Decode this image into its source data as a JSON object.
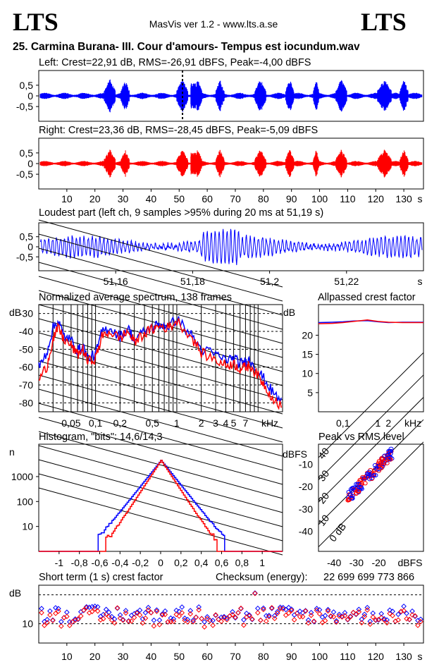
{
  "header": {
    "logo_left": "LTS",
    "logo_right": "LTS",
    "app": "MasVis ver 1.2 - www.lts.a.se",
    "file": "25. Carmina Burana- III. Cour d'amours- Tempus est iocundum.wav"
  },
  "colors": {
    "left": "#0000ff",
    "right": "#ff0000",
    "dashed": "#000000"
  },
  "chart_data": [
    {
      "type": "line",
      "title": "Left: Crest=22,91 dB, RMS=-26,91 dBFS, Peak=-4,00 dBFS",
      "ylim": [
        -1,
        1
      ],
      "yticks": [
        "0,5",
        "0",
        "-0,5"
      ],
      "marker_s": 51.19,
      "duration_s": 137,
      "envelope_loud_segments_s": [
        [
          23,
          27
        ],
        [
          29,
          32
        ],
        [
          49,
          53
        ],
        [
          55,
          58
        ],
        [
          63,
          66
        ],
        [
          77,
          81
        ],
        [
          88,
          91
        ],
        [
          98,
          100
        ],
        [
          106,
          110
        ],
        [
          121,
          126
        ],
        [
          129,
          132
        ]
      ],
      "color": "#0000ff"
    },
    {
      "type": "line",
      "title": "Right: Crest=23,36 dB, RMS=-28,45 dBFS, Peak=-5,09 dBFS",
      "ylim": [
        -1,
        1
      ],
      "yticks": [
        "0,5",
        "0",
        "-0,5"
      ],
      "xlabel": "s",
      "xticks": [
        "10",
        "20",
        "30",
        "40",
        "50",
        "60",
        "70",
        "80",
        "90",
        "100",
        "110",
        "120",
        "130"
      ],
      "color": "#ff0000"
    },
    {
      "type": "line",
      "title": "Loudest part (left  ch, 9 samples >95% during 20 ms at 51,19 s)",
      "ylim": [
        -1,
        1
      ],
      "yticks": [
        "0,5",
        "0",
        "-0,5"
      ],
      "xticks": [
        "51,16",
        "51,18",
        "51,2",
        "51,22"
      ],
      "xlabel": "s",
      "xlim": [
        51.14,
        51.24
      ],
      "color": "#0000ff"
    },
    {
      "type": "line",
      "title": "Normalized average spectrum, 138 frames",
      "ylabel": "dB",
      "yticks": [
        "-30",
        "-40",
        "-50",
        "-60",
        "-70",
        "-80"
      ],
      "xticks": [
        "0,05",
        "0,1",
        "0,2",
        "0,5",
        "1",
        "2",
        "3",
        "4",
        "5",
        "7"
      ],
      "xlabel": "kHz",
      "series": [
        {
          "color": "#0000ff",
          "f_khz": [
            0.02,
            0.025,
            0.03,
            0.035,
            0.04,
            0.05,
            0.06,
            0.07,
            0.08,
            0.1,
            0.12,
            0.15,
            0.2,
            0.25,
            0.3,
            0.4,
            0.5,
            0.6,
            0.8,
            1,
            1.5,
            2,
            3,
            4,
            5,
            6,
            7,
            8,
            10,
            12,
            15,
            20
          ],
          "db": [
            -60,
            -52,
            -38,
            -34,
            -42,
            -45,
            -51,
            -48,
            -55,
            -53,
            -40,
            -38,
            -43,
            -38,
            -45,
            -40,
            -38,
            -36,
            -37,
            -33,
            -42,
            -50,
            -53,
            -56,
            -55,
            -58,
            -57,
            -56,
            -62,
            -67,
            -74,
            -80
          ]
        },
        {
          "color": "#ff0000",
          "f_khz": [
            0.02,
            0.025,
            0.03,
            0.035,
            0.04,
            0.05,
            0.06,
            0.07,
            0.08,
            0.1,
            0.12,
            0.15,
            0.2,
            0.25,
            0.3,
            0.4,
            0.5,
            0.6,
            0.8,
            1,
            1.5,
            2,
            3,
            4,
            5,
            6,
            7,
            8,
            10,
            12,
            15,
            20
          ],
          "db": [
            -67,
            -60,
            -44,
            -38,
            -44,
            -48,
            -53,
            -50,
            -57,
            -55,
            -43,
            -40,
            -44,
            -40,
            -46,
            -41,
            -39,
            -37,
            -38,
            -34,
            -43,
            -52,
            -56,
            -59,
            -58,
            -61,
            -60,
            -59,
            -65,
            -70,
            -77,
            -83
          ]
        }
      ]
    },
    {
      "type": "line",
      "title": "Allpassed crest factor",
      "ylabel": "dB",
      "yticks": [
        "20",
        "15",
        "10",
        "5"
      ],
      "ylim": [
        0,
        28
      ],
      "xticks": [
        "0,1",
        "1",
        "2"
      ],
      "xlabel": "kHz",
      "series": [
        {
          "color": "#0000ff",
          "f_khz": [
            0.02,
            0.05,
            0.1,
            0.2,
            0.5,
            1,
            2,
            5,
            20
          ],
          "db": [
            23.3,
            23.4,
            23.5,
            23.7,
            23.8,
            23.5,
            23.3,
            23.4,
            23.4
          ]
        },
        {
          "color": "#ff0000",
          "f_khz": [
            0.02,
            0.05,
            0.1,
            0.2,
            0.5,
            1,
            2,
            5,
            20
          ],
          "db": [
            23.0,
            23.1,
            23.3,
            23.6,
            24.0,
            23.6,
            23.4,
            23.3,
            23.3
          ]
        }
      ]
    },
    {
      "type": "line",
      "title": "Histogram, \"bits\": 14,6/14,3",
      "ylabel": "n",
      "yticks": [
        "1000",
        "100",
        "10"
      ],
      "xticks": [
        "-1",
        "-0,8",
        "-0,6",
        "-0,4",
        "-0,2",
        "0",
        "0,2",
        "0,4",
        "0,6",
        "0,8",
        "1"
      ],
      "xlim": [
        -1.2,
        1.2
      ]
    },
    {
      "type": "scatter",
      "title": "Peak vs RMS level",
      "ylabel": "dBFS",
      "xlabel": "dBFS",
      "yticks": [
        "-10",
        "-20",
        "-30",
        "-40"
      ],
      "xticks": [
        "-40",
        "-30",
        "-20"
      ],
      "diagonal_labels": [
        "40",
        "30",
        "20",
        "10",
        "0 dB"
      ]
    },
    {
      "type": "scatter",
      "title": "Short term (1 s) crest factor",
      "ylabel": "dB",
      "yticks": [
        "10"
      ],
      "xticks": [
        "10",
        "20",
        "30",
        "40",
        "50",
        "60",
        "70",
        "80",
        "90",
        "100",
        "110",
        "120",
        "130"
      ],
      "xlabel": "s",
      "checksum_label": "Checksum (energy):",
      "checksum_value": "22 699 699 773 866"
    }
  ]
}
